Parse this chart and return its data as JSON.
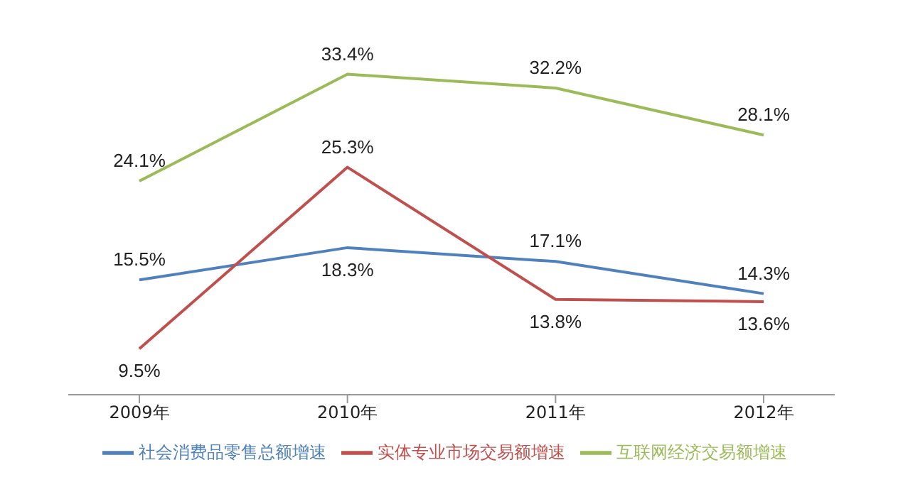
{
  "chart_data": {
    "type": "line",
    "categories": [
      "2009年",
      "2010年",
      "2011年",
      "2012年"
    ],
    "series": [
      {
        "name": "社会消费品零售总额增速",
        "color": "#4f81bd",
        "values": [
          15.5,
          18.3,
          17.1,
          14.3
        ],
        "value_labels": [
          "15.5%",
          "18.3%",
          "17.1%",
          "14.3%"
        ]
      },
      {
        "name": "实体专业市场交易额增速",
        "color": "#c0504d",
        "values": [
          9.5,
          25.3,
          13.8,
          13.6
        ],
        "value_labels": [
          "9.5%",
          "25.3%",
          "13.8%",
          "13.6%"
        ]
      },
      {
        "name": "互联网经济交易额增速",
        "color": "#9bbb59",
        "values": [
          24.1,
          33.4,
          32.2,
          28.1
        ],
        "value_labels": [
          "24.1%",
          "33.4%",
          "32.2%",
          "28.1%"
        ]
      }
    ],
    "legend": "bottom",
    "marker": "none",
    "line_style": "solid",
    "tick_labels": "x"
  }
}
